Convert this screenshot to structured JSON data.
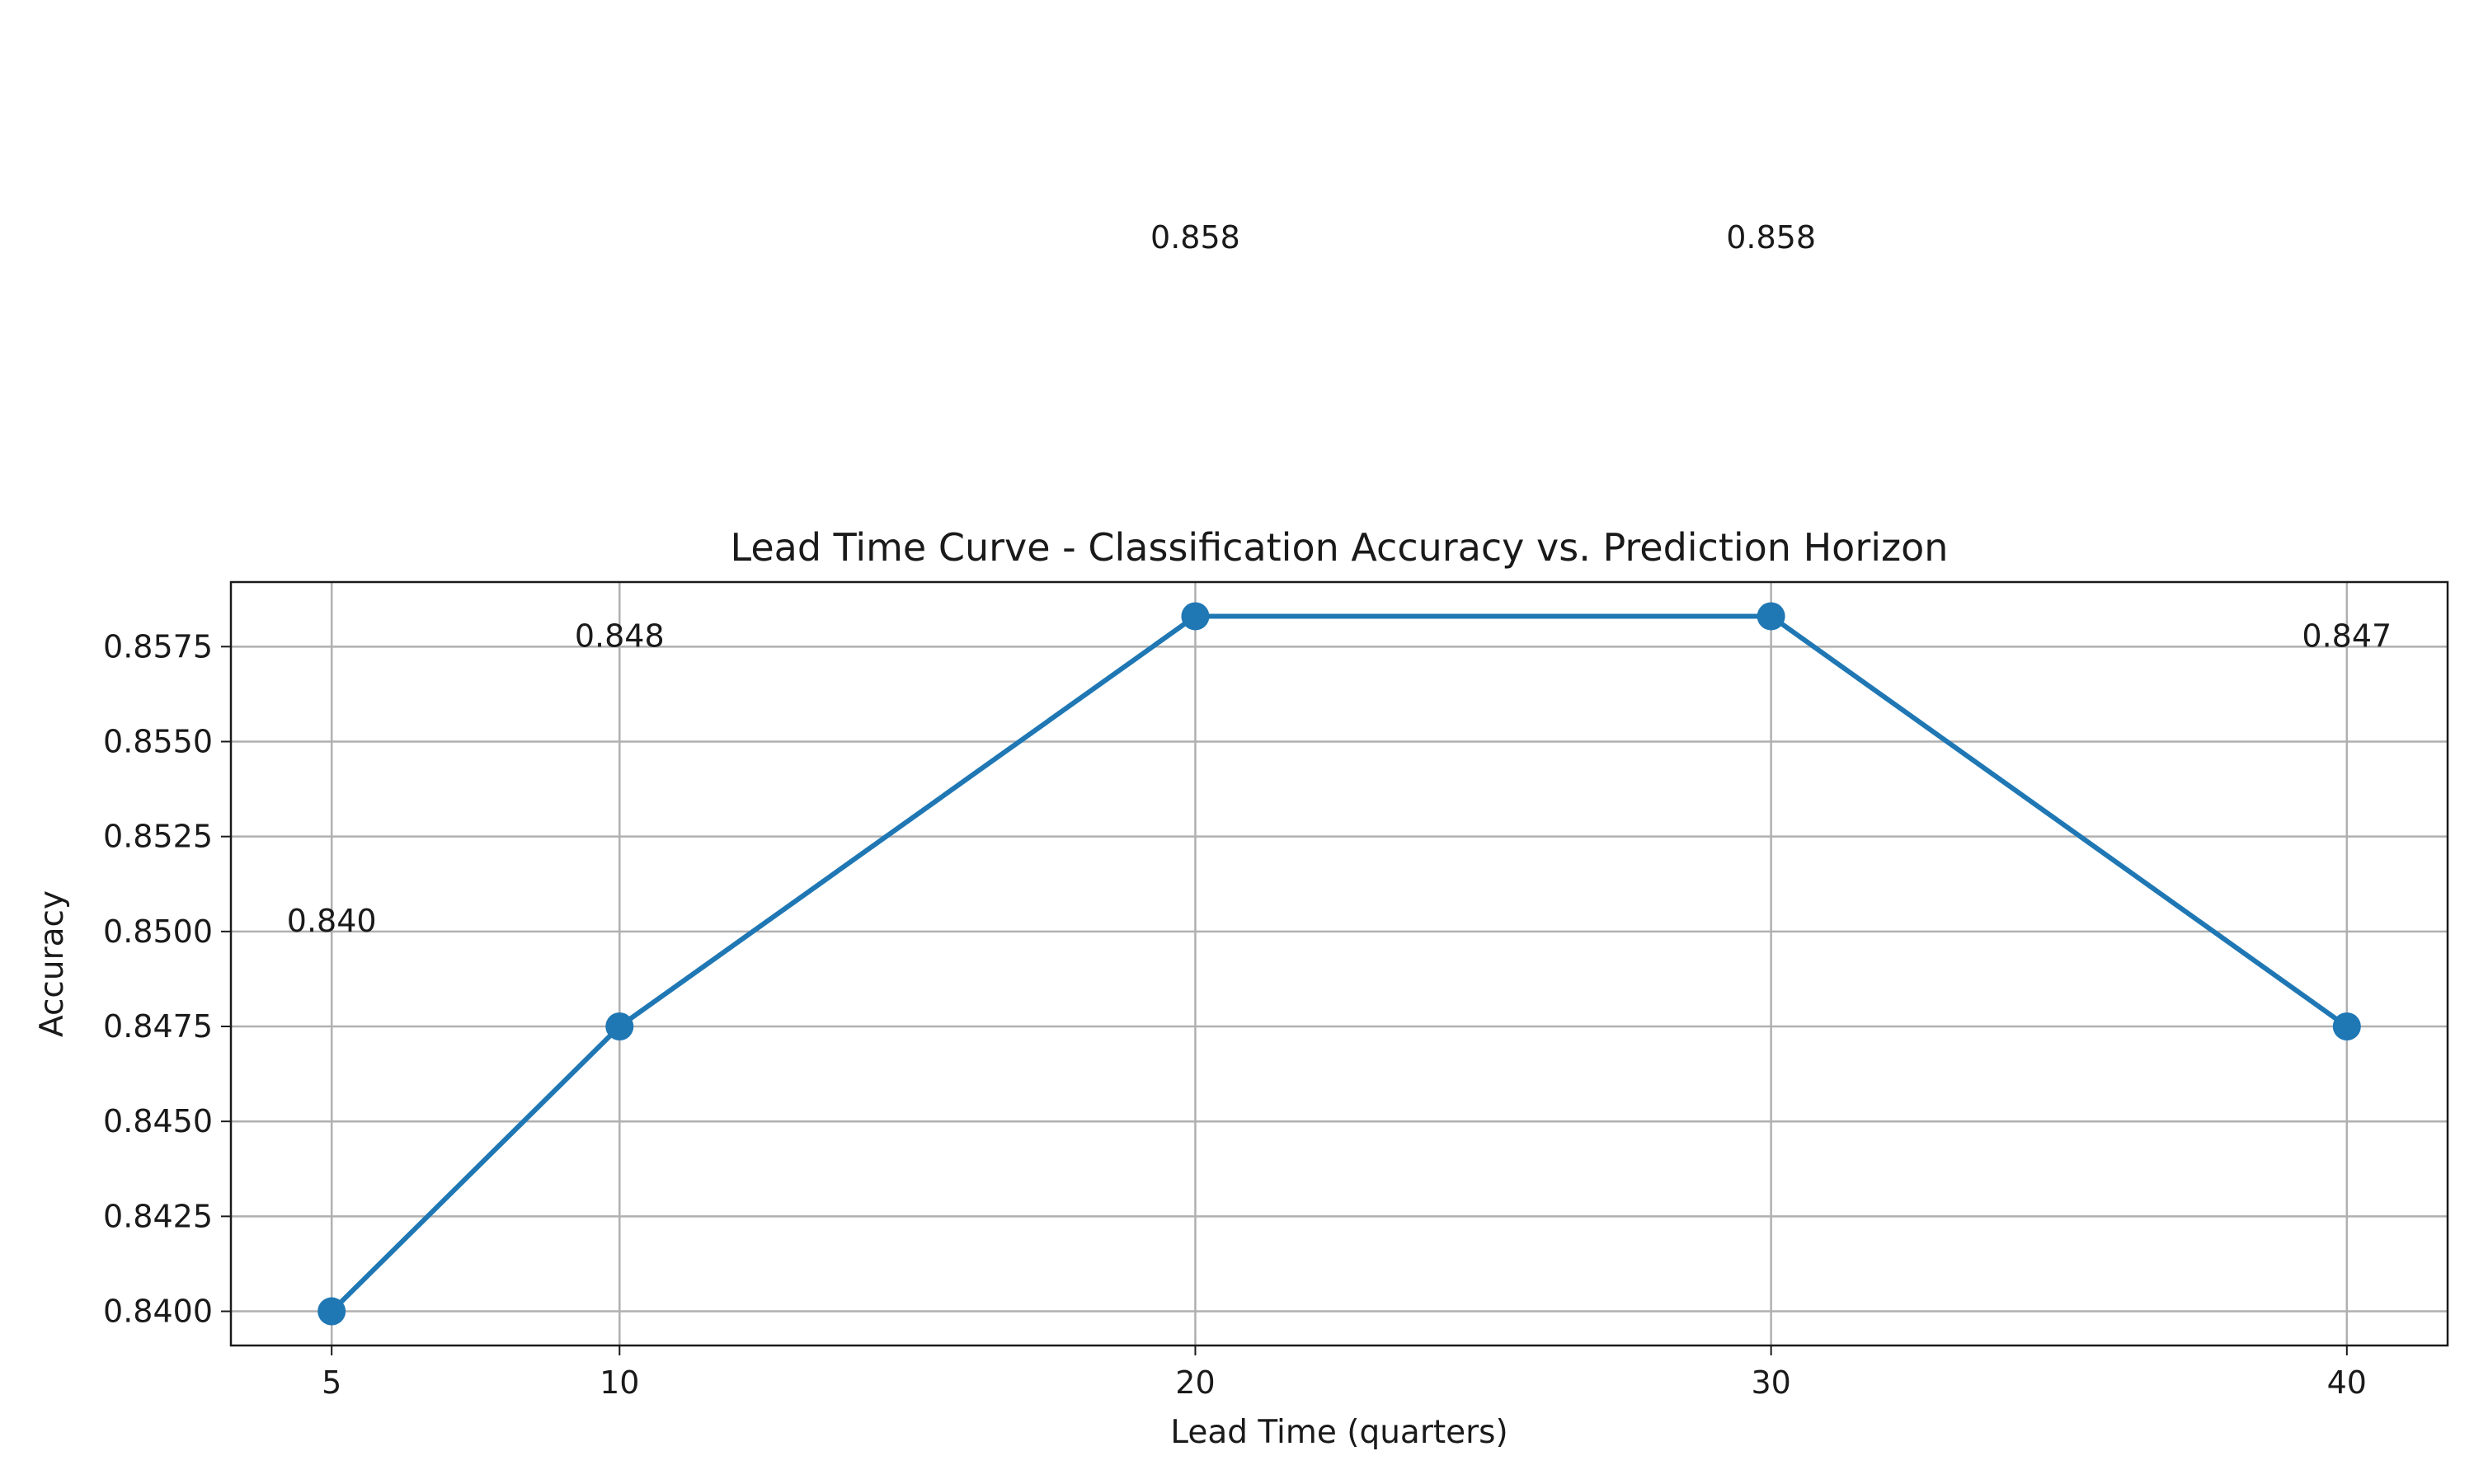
{
  "chart_data": {
    "type": "line",
    "title": "Lead Time Curve - Classification Accuracy vs. Prediction Horizon",
    "xlabel": "Lead Time (quarters)",
    "ylabel": "Accuracy",
    "x": [
      5,
      10,
      20,
      30,
      40
    ],
    "series": [
      {
        "values": [
          0.84,
          0.8475,
          0.8583,
          0.8583,
          0.8475
        ],
        "color": "#1f77b4",
        "marker": "circle"
      }
    ],
    "data_labels": [
      "0.840",
      "0.848",
      "0.858",
      "0.858",
      "0.847"
    ],
    "xticks": [
      5,
      10,
      20,
      30,
      40
    ],
    "xtick_labels": [
      "5",
      "10",
      "20",
      "30",
      "40"
    ],
    "yticks": [
      0.84,
      0.8425,
      0.845,
      0.8475,
      0.85,
      0.8525,
      0.855,
      0.8575
    ],
    "ytick_labels": [
      "0.8400",
      "0.8425",
      "0.8450",
      "0.8475",
      "0.8500",
      "0.8525",
      "0.8550",
      "0.8575"
    ],
    "xlim": [
      3.25,
      41.75
    ],
    "ylim": [
      0.8391,
      0.8592
    ],
    "label_y_values": [
      0.8503,
      0.8578,
      0.8683,
      0.8683,
      0.8578
    ],
    "grid": true,
    "legend": "none"
  }
}
